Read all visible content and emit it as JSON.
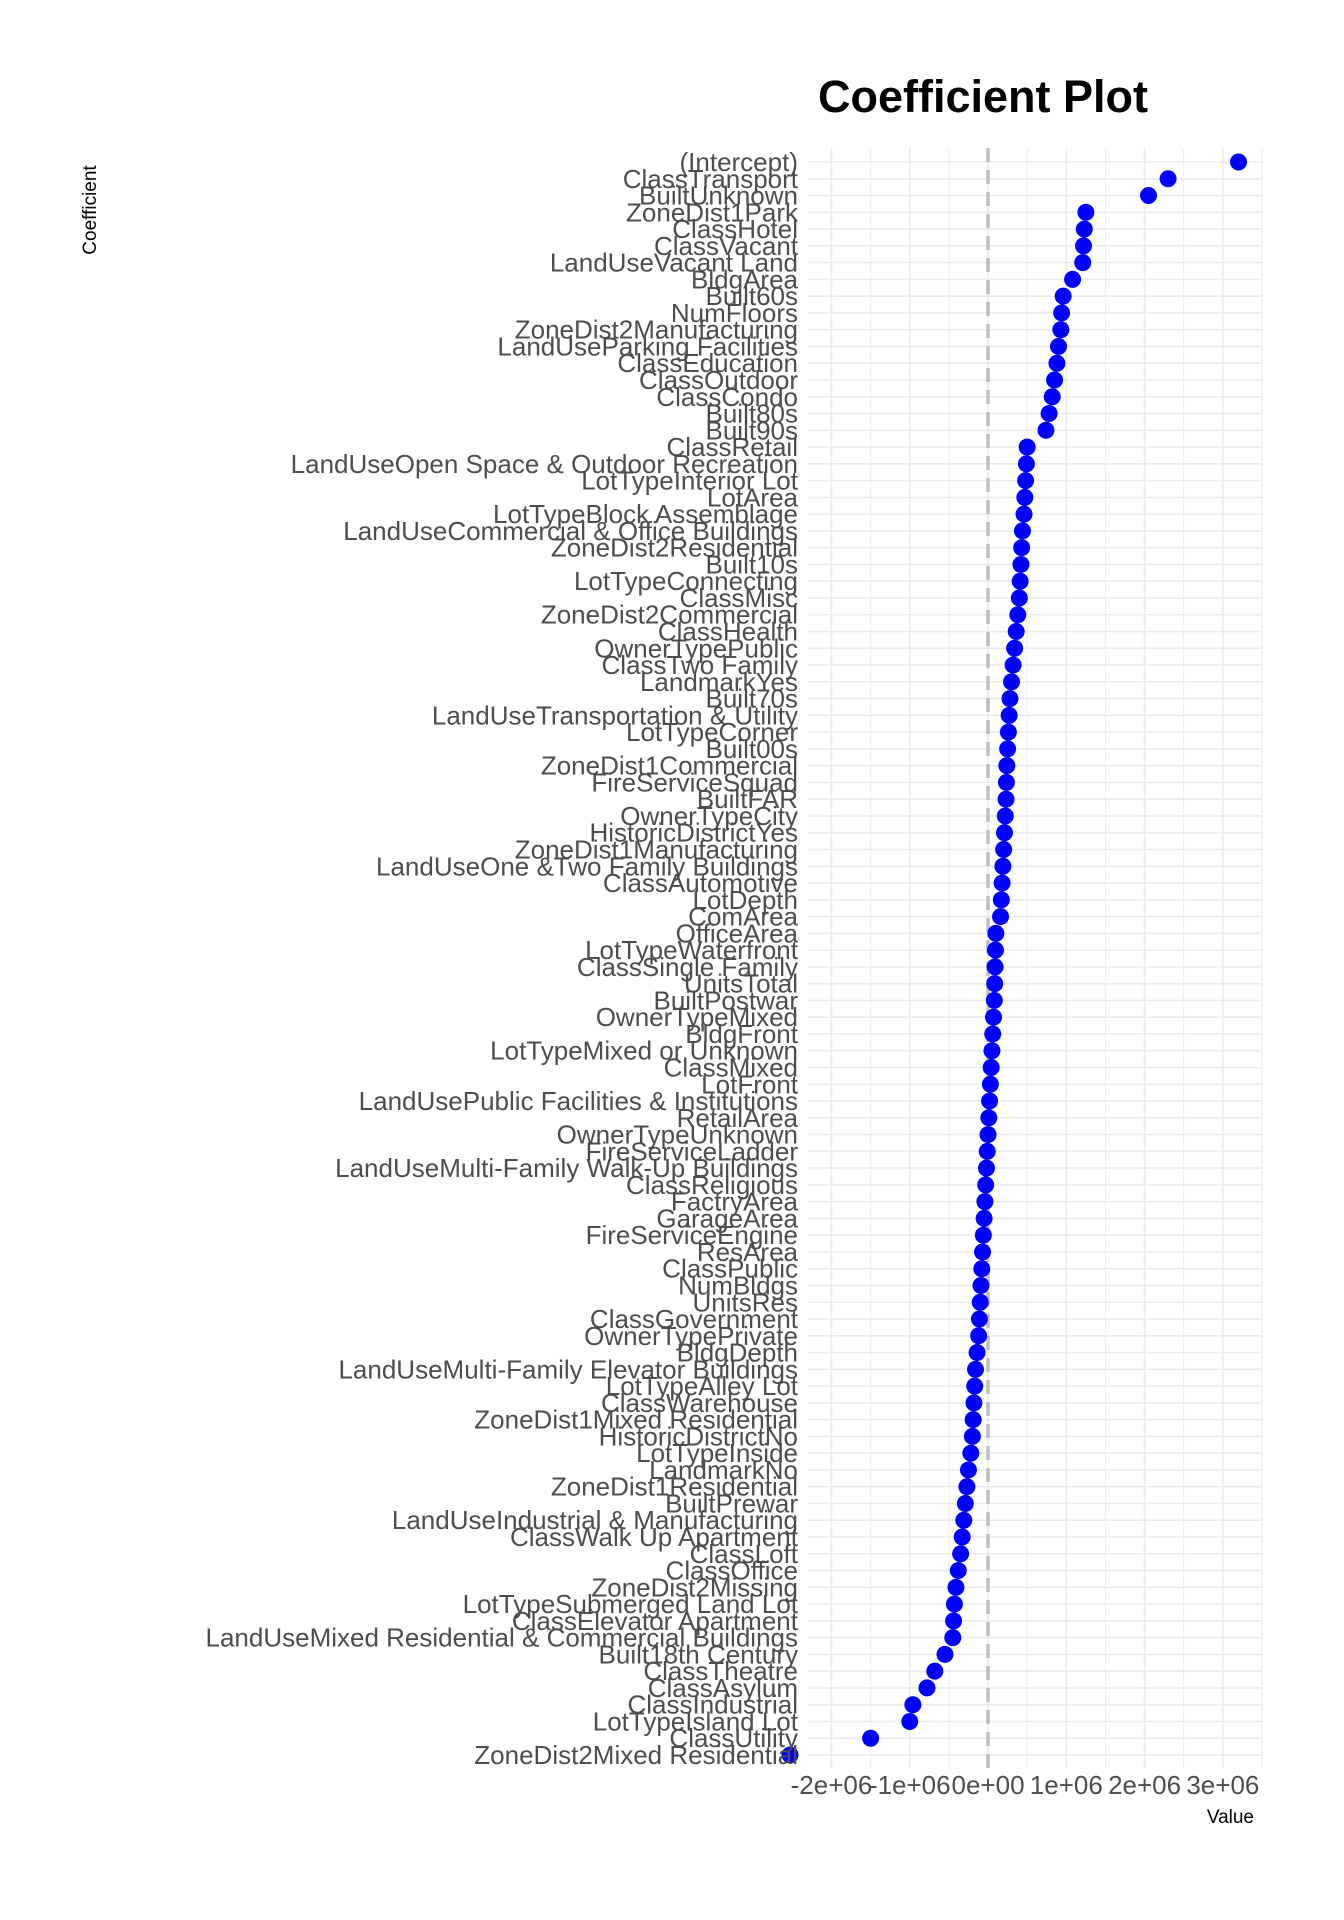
{
  "chart_data": {
    "type": "scatter",
    "title": "Coefficient Plot",
    "xlabel": "Value",
    "ylabel": "Coefficient",
    "xlim": [
      -2300000,
      3500000
    ],
    "x_ticks": [
      -2000000,
      -1000000,
      0,
      1000000,
      2000000,
      3000000
    ],
    "x_tick_labels": [
      "-2e+06",
      "-1e+06",
      "0e+00",
      "1e+06",
      "2e+06",
      "3e+06"
    ],
    "reference_line": 0,
    "point_color": "#0000ff",
    "reference_line_color": "#bebebe",
    "grid": true,
    "points": [
      {
        "label": "(Intercept)",
        "value": 3200000
      },
      {
        "label": "ClassTransport",
        "value": 2300000
      },
      {
        "label": "BuiltUnknown",
        "value": 2050000
      },
      {
        "label": "ZoneDist1Park",
        "value": 1250000
      },
      {
        "label": "ClassHotel",
        "value": 1230000
      },
      {
        "label": "ClassVacant",
        "value": 1220000
      },
      {
        "label": "LandUseVacant Land",
        "value": 1210000
      },
      {
        "label": "BldgArea",
        "value": 1080000
      },
      {
        "label": "Built60s",
        "value": 960000
      },
      {
        "label": "NumFloors",
        "value": 940000
      },
      {
        "label": "ZoneDist2Manufacturing",
        "value": 930000
      },
      {
        "label": "LandUseParking Facilities",
        "value": 900000
      },
      {
        "label": "ClassEducation",
        "value": 880000
      },
      {
        "label": "ClassOutdoor",
        "value": 850000
      },
      {
        "label": "ClassCondo",
        "value": 820000
      },
      {
        "label": "Built80s",
        "value": 780000
      },
      {
        "label": "Built90s",
        "value": 740000
      },
      {
        "label": "ClassRetail",
        "value": 500000
      },
      {
        "label": "LandUseOpen Space & Outdoor Recreation",
        "value": 490000
      },
      {
        "label": "LotTypeInterior Lot",
        "value": 480000
      },
      {
        "label": "LotArea",
        "value": 470000
      },
      {
        "label": "LotTypeBlock Assemblage",
        "value": 460000
      },
      {
        "label": "LandUseCommercial & Office Buildings",
        "value": 440000
      },
      {
        "label": "ZoneDist2Residential",
        "value": 430000
      },
      {
        "label": "Built10s",
        "value": 420000
      },
      {
        "label": "LotTypeConnecting",
        "value": 410000
      },
      {
        "label": "ClassMisc",
        "value": 400000
      },
      {
        "label": "ZoneDist2Commercial",
        "value": 380000
      },
      {
        "label": "ClassHealth",
        "value": 360000
      },
      {
        "label": "OwnerTypePublic",
        "value": 340000
      },
      {
        "label": "ClassTwo Family",
        "value": 320000
      },
      {
        "label": "LandmarkYes",
        "value": 300000
      },
      {
        "label": "Built70s",
        "value": 280000
      },
      {
        "label": "LandUseTransportation & Utility",
        "value": 270000
      },
      {
        "label": "LotTypeCorner",
        "value": 260000
      },
      {
        "label": "Built00s",
        "value": 250000
      },
      {
        "label": "ZoneDist1Commercial",
        "value": 240000
      },
      {
        "label": "FireServiceSquad",
        "value": 235000
      },
      {
        "label": "BuiltFAR",
        "value": 230000
      },
      {
        "label": "OwnerTypeCity",
        "value": 220000
      },
      {
        "label": "HistoricDistrictYes",
        "value": 210000
      },
      {
        "label": "ZoneDist1Manufacturing",
        "value": 200000
      },
      {
        "label": "LandUseOne &Two Family Buildings",
        "value": 190000
      },
      {
        "label": "ClassAutomotive",
        "value": 180000
      },
      {
        "label": "LotDepth",
        "value": 170000
      },
      {
        "label": "ComArea",
        "value": 160000
      },
      {
        "label": "OfficeArea",
        "value": 100000
      },
      {
        "label": "LotTypeWaterfront",
        "value": 95000
      },
      {
        "label": "ClassSingle Family",
        "value": 90000
      },
      {
        "label": "UnitsTotal",
        "value": 85000
      },
      {
        "label": "BuiltPostwar",
        "value": 80000
      },
      {
        "label": "OwnerTypeMixed",
        "value": 70000
      },
      {
        "label": "BldgFront",
        "value": 60000
      },
      {
        "label": "LotTypeMixed or Unknown",
        "value": 50000
      },
      {
        "label": "ClassMixed",
        "value": 40000
      },
      {
        "label": "LotFront",
        "value": 30000
      },
      {
        "label": "LandUsePublic Facilities & Institutions",
        "value": 20000
      },
      {
        "label": "RetailArea",
        "value": 10000
      },
      {
        "label": "OwnerTypeUnknown",
        "value": 0
      },
      {
        "label": "FireServiceLadder",
        "value": -10000
      },
      {
        "label": "LandUseMulti-Family Walk-Up Buildings",
        "value": -20000
      },
      {
        "label": "ClassReligious",
        "value": -30000
      },
      {
        "label": "FactryArea",
        "value": -40000
      },
      {
        "label": "GarageArea",
        "value": -50000
      },
      {
        "label": "FireServiceEngine",
        "value": -60000
      },
      {
        "label": "ResArea",
        "value": -70000
      },
      {
        "label": "ClassPublic",
        "value": -80000
      },
      {
        "label": "NumBldgs",
        "value": -90000
      },
      {
        "label": "UnitsRes",
        "value": -100000
      },
      {
        "label": "ClassGovernment",
        "value": -110000
      },
      {
        "label": "OwnerTypePrivate",
        "value": -120000
      },
      {
        "label": "BldgDepth",
        "value": -140000
      },
      {
        "label": "LandUseMulti-Family Elevator Buildings",
        "value": -160000
      },
      {
        "label": "LotTypeAlley Lot",
        "value": -170000
      },
      {
        "label": "ClassWarehouse",
        "value": -180000
      },
      {
        "label": "ZoneDist1Mixed Residential",
        "value": -190000
      },
      {
        "label": "HistoricDistrictNo",
        "value": -200000
      },
      {
        "label": "LotTypeInside",
        "value": -220000
      },
      {
        "label": "LandmarkNo",
        "value": -250000
      },
      {
        "label": "ZoneDist1Residential",
        "value": -270000
      },
      {
        "label": "BuiltPrewar",
        "value": -290000
      },
      {
        "label": "LandUseIndustrial & Manufacturing",
        "value": -310000
      },
      {
        "label": "ClassWalk Up Apartment",
        "value": -330000
      },
      {
        "label": "ClassLoft",
        "value": -350000
      },
      {
        "label": "ClassOffice",
        "value": -380000
      },
      {
        "label": "ZoneDist2Missing",
        "value": -410000
      },
      {
        "label": "LotTypeSubmerged Land Lot",
        "value": -430000
      },
      {
        "label": "ClassElevator Apartment",
        "value": -440000
      },
      {
        "label": "LandUseMixed Residential & Commercial Buildings",
        "value": -450000
      },
      {
        "label": "Built18th Century",
        "value": -550000
      },
      {
        "label": "ClassTheatre",
        "value": -680000
      },
      {
        "label": "ClassAsylum",
        "value": -780000
      },
      {
        "label": "ClassIndustrial",
        "value": -960000
      },
      {
        "label": "LotTypeIsland Lot",
        "value": -1000000
      },
      {
        "label": "ClassUtility",
        "value": -1500000
      },
      {
        "label": "ZoneDist2Mixed Residential",
        "value": -2530000
      }
    ]
  }
}
